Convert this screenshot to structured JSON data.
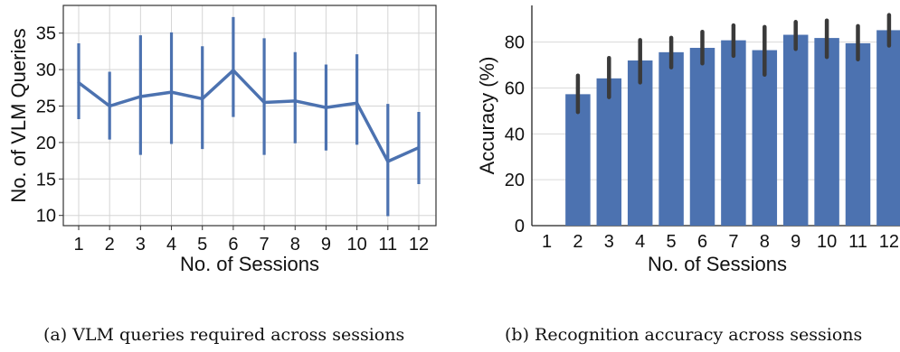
{
  "chart_data": [
    {
      "type": "line",
      "xlabel": "No. of Sessions",
      "ylabel": "No. of VLM Queries",
      "x": [
        1,
        2,
        3,
        4,
        5,
        6,
        7,
        8,
        9,
        10,
        11,
        12
      ],
      "y": [
        28.2,
        25.0,
        26.3,
        26.9,
        26.0,
        29.9,
        25.5,
        25.7,
        24.8,
        25.4,
        17.4,
        19.3
      ],
      "err_low": [
        23.2,
        20.4,
        18.3,
        19.8,
        19.1,
        23.5,
        18.3,
        19.9,
        18.9,
        19.7,
        9.9,
        14.3
      ],
      "err_high": [
        33.6,
        29.7,
        34.7,
        35.1,
        33.2,
        37.2,
        34.3,
        32.4,
        30.7,
        32.1,
        25.3,
        24.2
      ],
      "yticks": [
        10,
        15,
        20,
        25,
        30,
        35
      ],
      "ylim": [
        8.6,
        38.8
      ],
      "grid": true,
      "color": "#4c72b0",
      "caption": "(a) VLM queries required across sessions"
    },
    {
      "type": "bar",
      "xlabel": "No. of Sessions",
      "ylabel": "Accuracy (%)",
      "categories": [
        "1",
        "2",
        "3",
        "4",
        "5",
        "6",
        "7",
        "8",
        "9",
        "10",
        "11",
        "12"
      ],
      "values": [
        0,
        57.3,
        64.2,
        72.0,
        75.6,
        77.5,
        80.8,
        76.5,
        83.2,
        81.8,
        79.5,
        85.2
      ],
      "err_low": [
        0,
        49.5,
        56.0,
        62.4,
        69.0,
        70.7,
        74.0,
        65.8,
        77.0,
        73.5,
        72.5,
        78.5
      ],
      "err_high": [
        0,
        65.4,
        73.1,
        80.9,
        81.9,
        84.5,
        87.3,
        86.6,
        88.8,
        89.4,
        87.0,
        91.8
      ],
      "yticks": [
        0,
        20,
        40,
        60,
        80
      ],
      "ylim": [
        0,
        96
      ],
      "grid": true,
      "color": "#4c72b0",
      "caption": "(b) Recognition accuracy across sessions"
    }
  ]
}
